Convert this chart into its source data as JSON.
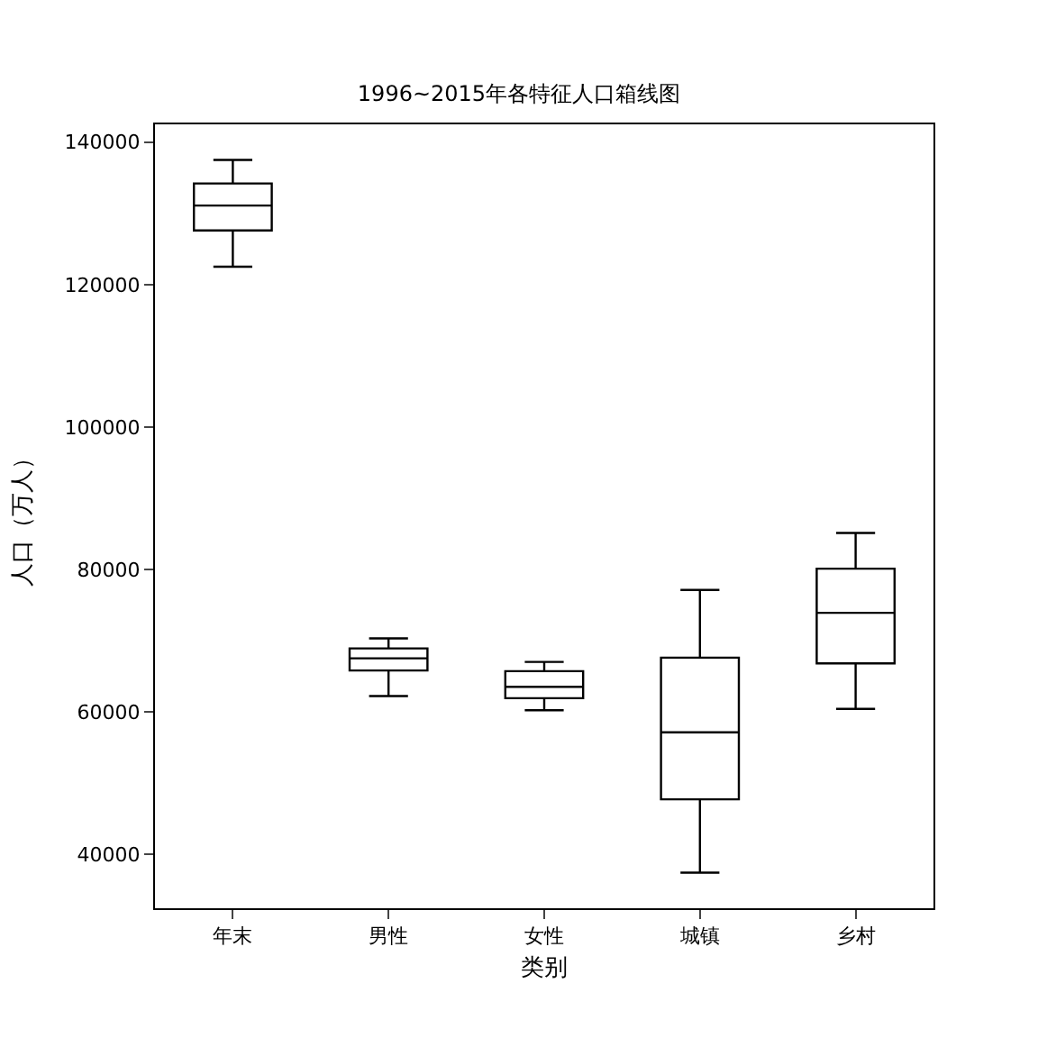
{
  "chart_data": {
    "type": "box",
    "title": "1996~2015年各特征人口箱线图",
    "xlabel": "类别",
    "ylabel": "人口（万人）",
    "categories": [
      "年末",
      "男性",
      "女性",
      "城镇",
      "乡村"
    ],
    "boxes": [
      {
        "low": 122500,
        "q1": 127600,
        "median": 131100,
        "q3": 134200,
        "high": 137500
      },
      {
        "low": 62200,
        "q1": 65800,
        "median": 67500,
        "q3": 68900,
        "high": 70300
      },
      {
        "low": 60200,
        "q1": 61900,
        "median": 63500,
        "q3": 65700,
        "high": 67000
      },
      {
        "low": 37400,
        "q1": 47700,
        "median": 57100,
        "q3": 67600,
        "high": 77100
      },
      {
        "low": 60400,
        "q1": 66800,
        "median": 73900,
        "q3": 80100,
        "high": 85100
      }
    ],
    "color": "#000000",
    "ylim": [
      32400,
      142500
    ],
    "yticks": [
      40000,
      60000,
      80000,
      100000,
      120000,
      140000
    ]
  }
}
